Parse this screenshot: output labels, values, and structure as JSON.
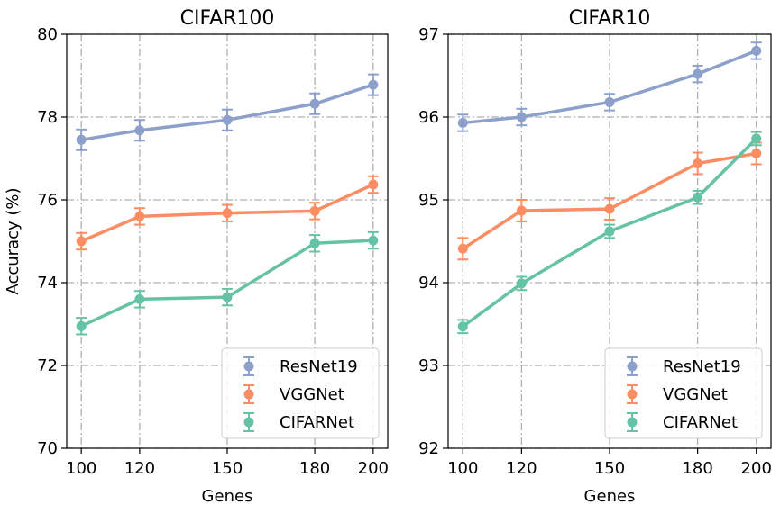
{
  "chart_data": [
    {
      "type": "line",
      "title": "CIFAR100",
      "xlabel": "Genes",
      "ylabel": "Accuracy (%)",
      "x": [
        100,
        120,
        150,
        180,
        200
      ],
      "xticks": [
        "100",
        "120",
        "150",
        "180",
        "200"
      ],
      "xlim": [
        95,
        205
      ],
      "ylim": [
        70,
        80
      ],
      "yticks": [
        "70",
        "72",
        "74",
        "76",
        "78",
        "80"
      ],
      "grid": true,
      "legend_position": "lower-right",
      "series": [
        {
          "name": "ResNet19",
          "color": "#8da0cb",
          "values": [
            77.45,
            77.68,
            77.93,
            78.32,
            78.78
          ],
          "errors": [
            0.25,
            0.25,
            0.25,
            0.25,
            0.25
          ]
        },
        {
          "name": "VGGNet",
          "color": "#fc8d62",
          "values": [
            75.0,
            75.6,
            75.68,
            75.73,
            76.37
          ],
          "errors": [
            0.2,
            0.2,
            0.2,
            0.2,
            0.2
          ]
        },
        {
          "name": "CIFARNet",
          "color": "#66c2a5",
          "values": [
            72.95,
            73.6,
            73.65,
            74.95,
            75.02
          ],
          "errors": [
            0.2,
            0.2,
            0.2,
            0.2,
            0.2
          ]
        }
      ]
    },
    {
      "type": "line",
      "title": "CIFAR10",
      "xlabel": "Genes",
      "ylabel": "",
      "x": [
        100,
        120,
        150,
        180,
        200
      ],
      "xticks": [
        "100",
        "120",
        "150",
        "180",
        "200"
      ],
      "xlim": [
        95,
        205
      ],
      "ylim": [
        92,
        97
      ],
      "yticks": [
        "92",
        "93",
        "94",
        "95",
        "96",
        "97"
      ],
      "grid": true,
      "legend_position": "lower-right",
      "series": [
        {
          "name": "ResNet19",
          "color": "#8da0cb",
          "values": [
            95.93,
            96.0,
            96.18,
            96.52,
            96.8
          ],
          "errors": [
            0.1,
            0.1,
            0.1,
            0.1,
            0.1
          ]
        },
        {
          "name": "VGGNet",
          "color": "#fc8d62",
          "values": [
            94.41,
            94.87,
            94.89,
            95.44,
            95.56
          ],
          "errors": [
            0.13,
            0.13,
            0.13,
            0.13,
            0.13
          ]
        },
        {
          "name": "CIFARNet",
          "color": "#66c2a5",
          "values": [
            93.47,
            93.99,
            94.62,
            95.03,
            95.74
          ],
          "errors": [
            0.08,
            0.08,
            0.08,
            0.08,
            0.08
          ]
        }
      ]
    }
  ]
}
